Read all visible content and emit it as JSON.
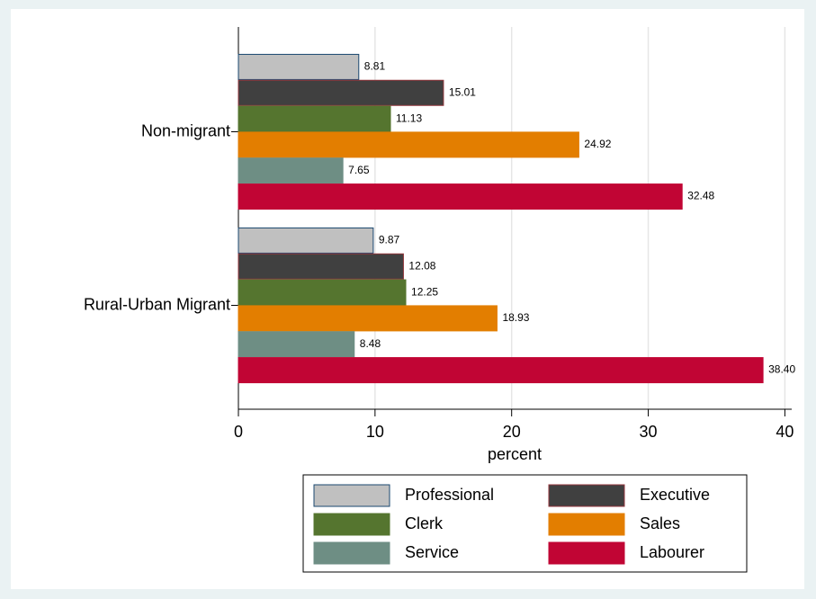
{
  "chart_data": {
    "type": "hbar",
    "categories": [
      "Non-migrant",
      "Rural-Urban Migrant"
    ],
    "series": [
      {
        "name": "Professional",
        "color": "#c0c0c0",
        "edge": "#1a476f",
        "values": [
          8.81,
          9.87
        ],
        "value_labels": [
          "8.81",
          "9.87"
        ]
      },
      {
        "name": "Executive",
        "color": "#404040",
        "edge": "#90353b",
        "values": [
          15.01,
          12.08
        ],
        "value_labels": [
          "15.01",
          "12.08"
        ]
      },
      {
        "name": "Clerk",
        "color": "#55752f",
        "edge": "#55752f",
        "values": [
          11.13,
          12.25
        ],
        "value_labels": [
          "11.13",
          "12.25"
        ]
      },
      {
        "name": "Sales",
        "color": "#e37e00",
        "edge": "#e37e00",
        "values": [
          24.92,
          18.93
        ],
        "value_labels": [
          "24.92",
          "18.93"
        ]
      },
      {
        "name": "Service",
        "color": "#6e8e84",
        "edge": "#6e8e84",
        "values": [
          7.65,
          8.48
        ],
        "value_labels": [
          "7.65",
          "8.48"
        ]
      },
      {
        "name": "Labourer",
        "color": "#c10534",
        "edge": "#c10534",
        "values": [
          32.48,
          38.4
        ],
        "value_labels": [
          "32.48",
          "38.40"
        ]
      }
    ],
    "xlabel": "percent",
    "xlim": [
      0,
      40.5
    ],
    "xticks": [
      0,
      10,
      20,
      30,
      40
    ],
    "grid": true,
    "legend": "bottom"
  }
}
